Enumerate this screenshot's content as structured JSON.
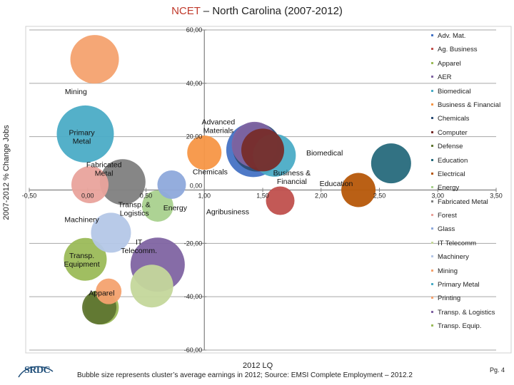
{
  "title": {
    "highlight": "NCET",
    "rest": " – North Carolina (2007-2012)"
  },
  "chart_data": {
    "type": "bubble",
    "title": "NCET – North Carolina (2007-2012)",
    "xlabel": "2012 LQ",
    "ylabel": "2007-2012 % Change Jobs",
    "xlim": [
      -0.5,
      3.5
    ],
    "ylim": [
      -60,
      60
    ],
    "x_ticks": [
      -0.5,
      0.0,
      0.5,
      1.0,
      1.5,
      2.0,
      2.5,
      3.0,
      3.5
    ],
    "y_ticks": [
      -60,
      -40,
      -20,
      0,
      20,
      40,
      60
    ],
    "x_tick_labels": [
      "-0,50",
      "0,00",
      "0,50",
      "1,00",
      "1,50",
      "2,00",
      "2,50",
      "3,00",
      "3,50"
    ],
    "y_tick_labels": [
      "-60,00",
      "-40,00",
      "-20,00",
      "0,00",
      "20,00",
      "40,00",
      "60,00"
    ],
    "gridlines": "horizontal",
    "legend_position": "right",
    "series": [
      {
        "name": "Adv. Mat.",
        "color": "#4472c4",
        "x": 1.42,
        "y": 15,
        "size": 38
      },
      {
        "name": "Ag. Business",
        "color": "#c0504d",
        "x": 1.65,
        "y": -4,
        "size": 20
      },
      {
        "name": "Apparel",
        "color": "#9bbb59",
        "x": 0.12,
        "y": -44,
        "size": 24
      },
      {
        "name": "AER",
        "color": "#8064a2",
        "x": 1.43,
        "y": 17,
        "size": 32
      },
      {
        "name": "Biomedical",
        "color": "#4bacc6",
        "x": 1.6,
        "y": 13,
        "size": 30
      },
      {
        "name": "Business & Financial",
        "color": "#f79646",
        "x": 1.0,
        "y": 14,
        "size": 24
      },
      {
        "name": "Chemicals",
        "color": "#2c4d75",
        "x": 1.45,
        "y": 16,
        "size": 34
      },
      {
        "name": "Computer",
        "color": "#772c2a",
        "x": 1.5,
        "y": 15,
        "size": 30
      },
      {
        "name": "Defense",
        "color": "#5f7530",
        "x": 0.1,
        "y": -44,
        "size": 24
      },
      {
        "name": "Education",
        "color": "#276a7c",
        "x": 2.6,
        "y": 10,
        "size": 28
      },
      {
        "name": "Electrical",
        "color": "#b65708",
        "x": 2.32,
        "y": 0,
        "size": 24
      },
      {
        "name": "Energy",
        "color": "#a9d18e",
        "x": 0.6,
        "y": -6,
        "size": 22
      },
      {
        "name": "Fabricated Metal",
        "color": "#7f7f7f",
        "x": 0.3,
        "y": 3,
        "size": 32
      },
      {
        "name": "Forest",
        "color": "#e9a39c",
        "x": 0.02,
        "y": 2,
        "size": 26
      },
      {
        "name": "Glass",
        "color": "#8ea9db",
        "x": 0.72,
        "y": 2,
        "size": 20
      },
      {
        "name": "IT Telecomm",
        "color": "#c4d79b",
        "x": 0.55,
        "y": -36,
        "size": 30
      },
      {
        "name": "Machinery",
        "color": "#b4c7e7",
        "x": 0.2,
        "y": -16,
        "size": 28
      },
      {
        "name": "Mining",
        "color": "#f4a26f",
        "x": 0.06,
        "y": 49,
        "size": 34
      },
      {
        "name": "Primary Metal",
        "color": "#4bacc6",
        "x": -0.02,
        "y": 21,
        "size": 40
      },
      {
        "name": "Printing",
        "color": "#f4a26f",
        "x": 0.18,
        "y": -38,
        "size": 18
      },
      {
        "name": "Transp. & Logistics",
        "color": "#8064a2",
        "x": 0.6,
        "y": -28,
        "size": 38
      },
      {
        "name": "Transp. Equip.",
        "color": "#9bbb59",
        "x": -0.02,
        "y": -26,
        "size": 30
      }
    ],
    "annotations": [
      {
        "text": "Mining",
        "x": -0.1,
        "y": 37
      },
      {
        "text": "Primary\nMetal",
        "x": -0.05,
        "y": 20
      },
      {
        "text": "Advanced\nMaterials",
        "x": 1.12,
        "y": 24
      },
      {
        "text": "Fabricated\nMetal",
        "x": 0.14,
        "y": 8
      },
      {
        "text": "Chemicals",
        "x": 1.05,
        "y": 7
      },
      {
        "text": "Biomedical",
        "x": 2.03,
        "y": 14
      },
      {
        "text": "Business &\nFinancial",
        "x": 1.75,
        "y": 5
      },
      {
        "text": "Education",
        "x": 2.13,
        "y": 2.5
      },
      {
        "text": "Transp. &\nLogistics",
        "x": 0.4,
        "y": -7
      },
      {
        "text": "Energy",
        "x": 0.75,
        "y": -6.5
      },
      {
        "text": "Agribusiness",
        "x": 1.2,
        "y": -8
      },
      {
        "text": "Machinery",
        "x": -0.05,
        "y": -11
      },
      {
        "text": "IT\nTelecomm.",
        "x": 0.44,
        "y": -21
      },
      {
        "text": "Transp.\nEquipment",
        "x": -0.05,
        "y": -26
      },
      {
        "text": "Apparel",
        "x": 0.12,
        "y": -38.5
      }
    ]
  },
  "legend": [
    "Adv. Mat.",
    "Ag. Business",
    "Apparel",
    "AER",
    "Biomedical",
    "Business & Financial",
    "Chemicals",
    "Computer",
    "Defense",
    "Education",
    "Electrical",
    "Energy",
    "Fabricated Metal",
    "Forest",
    "Glass",
    "IT Telecomm",
    "Machinery",
    "Mining",
    "Primary Metal",
    "Printing",
    "Transp. & Logistics",
    "Transp. Equip."
  ],
  "footnote": "Bubble size represents cluster’s average earnings in 2012; Source: EMSI Complete Employment – 2012.2",
  "logo_text": "SRDC",
  "page_number": "Pg. 4",
  "icons": {
    "logo": "srdc-logo-icon"
  }
}
